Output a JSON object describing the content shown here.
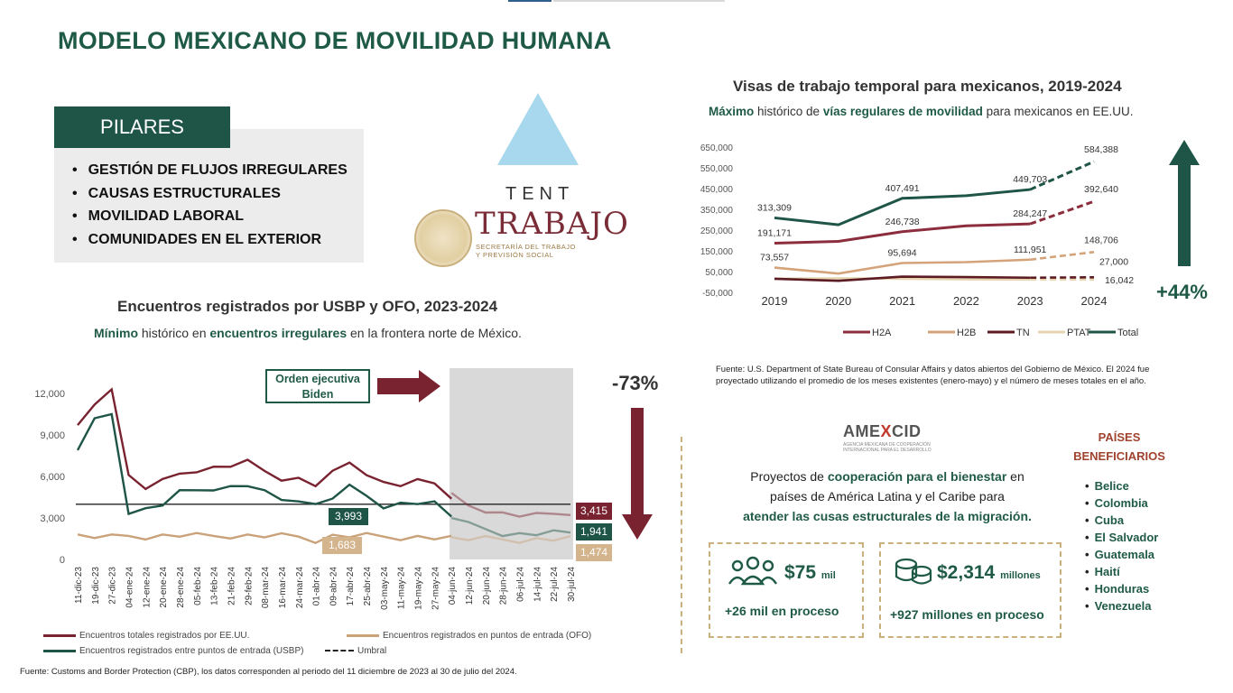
{
  "title": "MODELO MEXICANO DE MOVILIDAD HUMANA",
  "pilares": {
    "heading": "PILARES",
    "items": [
      "GESTIÓN DE FLUJOS IRREGULARES",
      "CAUSAS ESTRUCTURALES",
      "MOVILIDAD LABORAL",
      "COMUNIDADES EN EL EXTERIOR"
    ]
  },
  "logo": {
    "tent": "TENT",
    "trabajo": "TRABAJO",
    "secretaria_line1": "SECRETARÍA DEL TRABAJO",
    "secretaria_line2": "Y PREVISIÓN SOCIAL"
  },
  "encuentros": {
    "title": "Encuentros registrados por USBP y OFO, 2023-2024",
    "sub_pre": "Mínimo",
    "sub_mid1": " histórico en ",
    "sub_bold": "encuentros irregulares",
    "sub_post": " en la frontera norte de México.",
    "orden_label": "Orden ejecutiva Biden",
    "pct": "-73%",
    "badge_umbral": "3,993",
    "badge_ofo": "1,683",
    "end_total": "3,415",
    "end_usbp": "1,941",
    "end_ofo": "1,474",
    "legend": [
      "Encuentros totales registrados por EE.UU.",
      "Encuentros registrados en puntos de entrada (OFO)",
      "Encuentros registrados entre puntos de entrada (USBP)",
      "Umbral"
    ],
    "source": "Fuente: Customs and Border Protection (CBP), los datos corresponden al periodo del 11 diciembre de 2023 al 30 de julio del 2024."
  },
  "visas": {
    "title": "Visas de trabajo temporal para mexicanos, 2019-2024",
    "sub_bold1": "Máximo",
    "sub_mid": " histórico de ",
    "sub_bold2": "vías regulares de movilidad",
    "sub_post": " para mexicanos en EE.UU.",
    "pct": "+44%",
    "source": "Fuente: U.S. Department of State Bureau of Consular Affairs y datos abiertos del Gobierno de México. El 2024 fue proyectado utilizando el promedio de los meses existentes (enero-mayo) y el número de meses totales en el año."
  },
  "amexcid": {
    "logo_a": "AME",
    "logo_x": "X",
    "logo_b": "CID",
    "logo_sub": "AGENCIA MEXICANA DE COOPERACIÓN INTERNACIONAL PARA EL DESARROLLO",
    "coop_l1a": "Proyectos de ",
    "coop_l1b": "cooperación para el bienestar",
    "coop_l1c": " en",
    "coop_l2": "países de América Latina y el Caribe para",
    "coop_l3": "atender las cusas estructurales de la migración.",
    "paises_title": "PAÍSES BENEFICIARIOS",
    "paises": [
      "Belice",
      "Colombia",
      "Cuba",
      "El Salvador",
      "Guatemala",
      "Haití",
      "Honduras",
      "Venezuela"
    ],
    "card1_value": "$75",
    "card1_unit": "mil",
    "card1_foot": "+26 mil en proceso",
    "card2_value": "$2,314",
    "card2_unit": "millones",
    "card2_foot": "+927 millones en proceso"
  },
  "chart_data": [
    {
      "type": "line",
      "title": "Encuentros registrados por USBP y OFO, 2023-2024",
      "x_tick_labels": [
        "11-dic-23",
        "19-dic-23",
        "27-dic-23",
        "04-ene-24",
        "12-ene-24",
        "20-ene-24",
        "28-ene-24",
        "05-feb-24",
        "13-feb-24",
        "21-feb-24",
        "29-feb-24",
        "08-mar-24",
        "16-mar-24",
        "24-mar-24",
        "01-abr-24",
        "09-abr-24",
        "17-abr-24",
        "25-abr-24",
        "03-may-24",
        "11-may-24",
        "19-may-24",
        "27-may-24",
        "04-jun-24",
        "12-jun-24",
        "20-jun-24",
        "28-jun-24",
        "06-jul-24",
        "14-jul-24",
        "22-jul-24",
        "30-jul-24"
      ],
      "ylim": [
        0,
        12000
      ],
      "y_ticks": [
        "0",
        "3,000",
        "6,000",
        "9,000",
        "12,000"
      ],
      "umbral": 3993,
      "series": [
        {
          "name": "Encuentros totales registrados por EE.UU.",
          "color": "#7a2330",
          "values": [
            9500,
            11200,
            12500,
            6000,
            5200,
            5600,
            6200,
            6500,
            6600,
            6800,
            7000,
            6400,
            5900,
            5800,
            5400,
            6200,
            7000,
            6300,
            5500,
            5400,
            5600,
            5500,
            4600,
            3900,
            3600,
            3300,
            3200,
            3150,
            3300,
            3415
          ]
        },
        {
          "name": "Encuentros registrados entre puntos de entrada (USBP)",
          "color": "#1e5547",
          "values": [
            8000,
            10000,
            10500,
            3500,
            3600,
            4000,
            4800,
            5000,
            5200,
            5200,
            5400,
            4800,
            4300,
            4400,
            3900,
            4500,
            5200,
            4600,
            3900,
            4000,
            4100,
            3993,
            3100,
            2500,
            2200,
            1900,
            1800,
            1850,
            1900,
            1941
          ]
        },
        {
          "name": "Encuentros registrados en puntos de entrada (OFO)",
          "color": "#c9a27a",
          "values": [
            1700,
            1650,
            1600,
            1700,
            1650,
            1700,
            1750,
            1700,
            1700,
            1720,
            1700,
            1700,
            1683,
            1650,
            1400,
            1683,
            1700,
            1700,
            1650,
            1600,
            1600,
            1550,
            1500,
            1500,
            1480,
            1450,
            1400,
            1440,
            1460,
            1474
          ]
        }
      ]
    },
    {
      "type": "line",
      "title": "Visas de trabajo temporal para mexicanos, 2019-2024",
      "categories": [
        "2019",
        "2020",
        "2021",
        "2022",
        "2023",
        "2024"
      ],
      "y_ticks": [
        "-50,000",
        "50,000",
        "150,000",
        "250,000",
        "350,000",
        "450,000",
        "550,000",
        "650,000"
      ],
      "ylim": [
        -50000,
        650000
      ],
      "series": [
        {
          "name": "H2A",
          "color": "#8b2d3c",
          "values": [
            191171,
            200000,
            246738,
            275000,
            284247,
            392640
          ]
        },
        {
          "name": "H2B",
          "color": "#d4a37a",
          "values": [
            73557,
            45000,
            95694,
            100000,
            111951,
            148706
          ]
        },
        {
          "name": "TN",
          "color": "#5c1a22",
          "values": [
            20000,
            10000,
            30000,
            28000,
            25000,
            27000
          ]
        },
        {
          "name": "PTAT",
          "color": "#e6d5b0",
          "values": [
            20000,
            22000,
            20000,
            17000,
            16000,
            16042
          ]
        },
        {
          "name": "Total",
          "color": "#1e5547",
          "values": [
            313309,
            280000,
            407491,
            420000,
            449703,
            584388
          ]
        }
      ],
      "point_labels": {
        "Total": {
          "2019": "313,309",
          "2021": "407,491",
          "2023": "449,703",
          "2024": "584,388"
        },
        "H2A": {
          "2019": "191,171",
          "2021": "246,738",
          "2023": "284,247",
          "2024": "392,640"
        },
        "H2B": {
          "2019": "73,557",
          "2021": "95,694",
          "2023": "111,951",
          "2024": "148,706"
        },
        "TN": {
          "2024": "27,000"
        },
        "PTAT": {
          "2024": "16,042"
        }
      },
      "legend": [
        "H2A",
        "H2B",
        "TN",
        "PTAT",
        "Total"
      ]
    }
  ]
}
